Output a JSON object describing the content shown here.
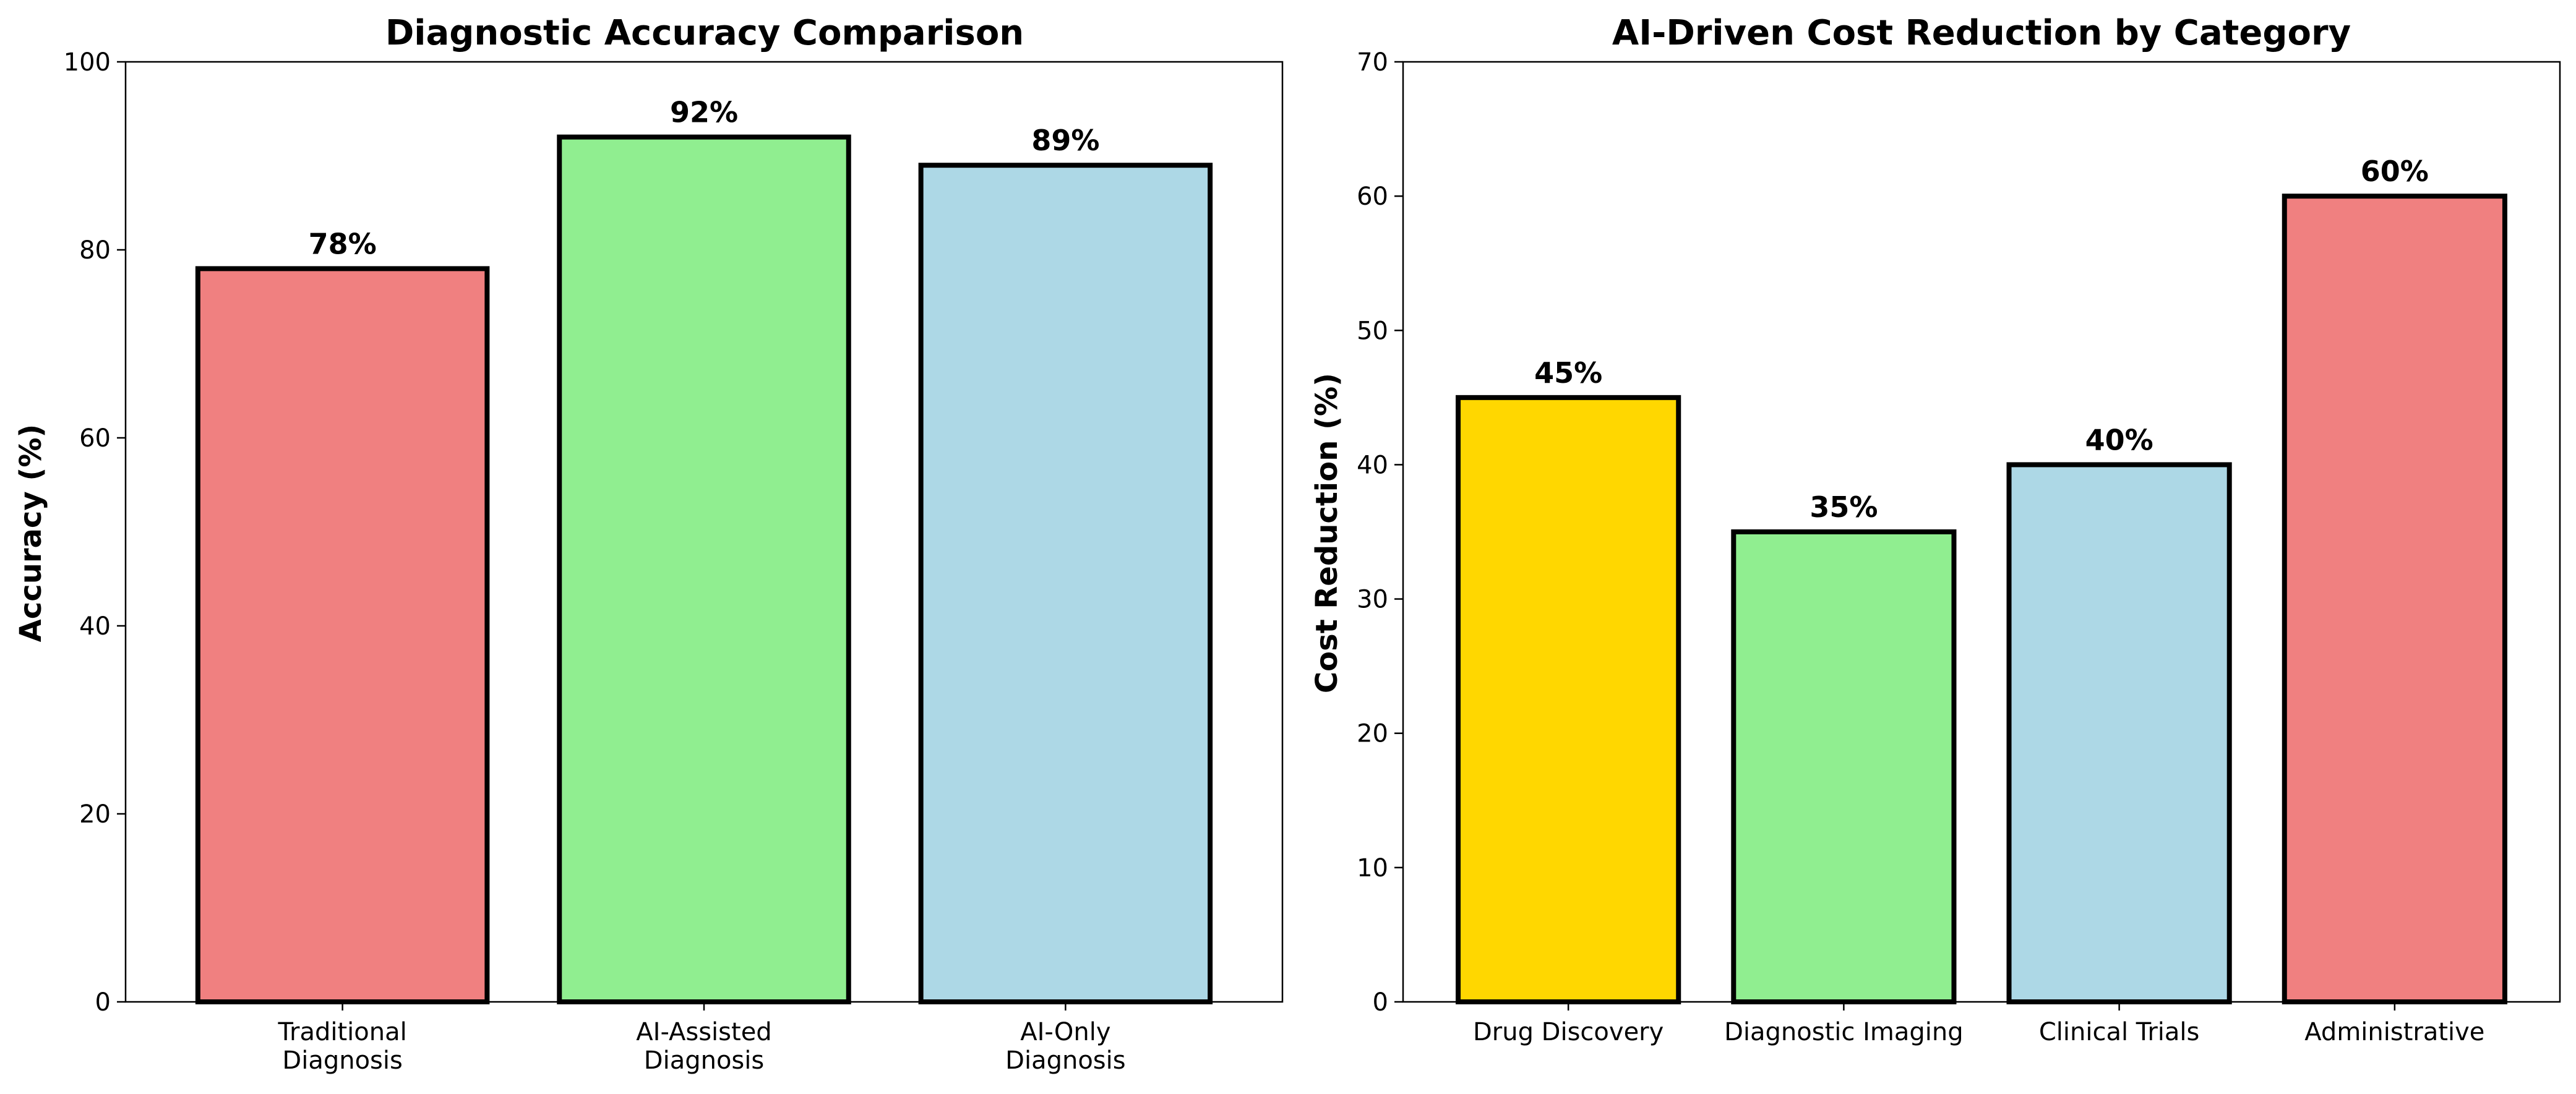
{
  "chart_data": [
    {
      "type": "bar",
      "title": "Diagnostic Accuracy Comparison",
      "xlabel": "",
      "ylabel": "Accuracy (%)",
      "categories": [
        "Traditional\nDiagnosis",
        "AI-Assisted\nDiagnosis",
        "AI-Only\nDiagnosis"
      ],
      "values": [
        78,
        92,
        89
      ],
      "data_labels": [
        "78%",
        "92%",
        "89%"
      ],
      "colors": [
        "#f08080",
        "#90ee90",
        "#add8e6"
      ],
      "ylim": [
        0,
        100
      ],
      "yticks": [
        0,
        20,
        40,
        60,
        80,
        100
      ],
      "grid": false,
      "legend": "none"
    },
    {
      "type": "bar",
      "title": "AI-Driven Cost Reduction by Category",
      "xlabel": "",
      "ylabel": "Cost Reduction (%)",
      "categories": [
        "Drug Discovery",
        "Diagnostic Imaging",
        "Clinical Trials",
        "Administrative"
      ],
      "values": [
        45,
        35,
        40,
        60
      ],
      "data_labels": [
        "45%",
        "35%",
        "40%",
        "60%"
      ],
      "colors": [
        "#ffd700",
        "#90ee90",
        "#add8e6",
        "#f08080"
      ],
      "ylim": [
        0,
        70
      ],
      "yticks": [
        0,
        10,
        20,
        30,
        40,
        50,
        60,
        70
      ],
      "grid": false,
      "legend": "none"
    }
  ]
}
